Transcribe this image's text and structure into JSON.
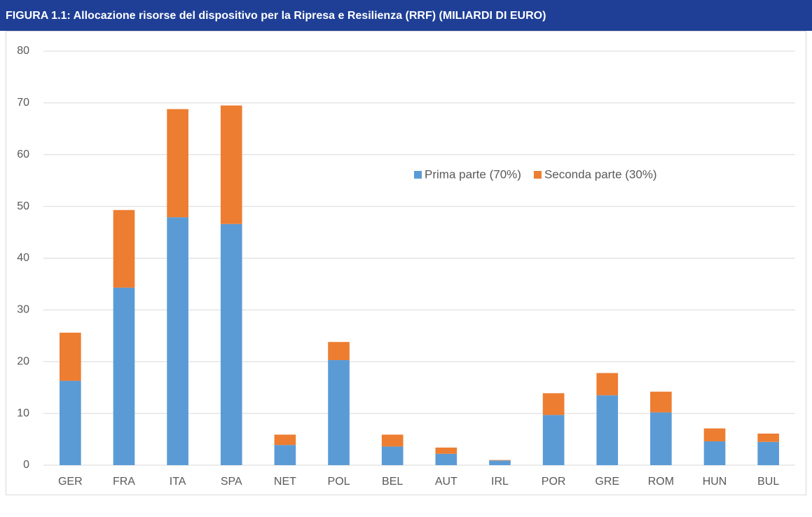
{
  "chart_data": {
    "type": "stacked_bar",
    "title": "FIGURA 1.1: Allocazione risorse del dispositivo per la Ripresa e Resilienza (RRF) (MILIARDI DI EURO)",
    "categories": [
      "GER",
      "FRA",
      "ITA",
      "SPA",
      "NET",
      "POL",
      "BEL",
      "AUT",
      "IRL",
      "POR",
      "GRE",
      "ROM",
      "HUN",
      "BUL"
    ],
    "series": [
      {
        "name": "Prima parte (70%)",
        "color": "#5b9bd5",
        "values": [
          16.3,
          34.3,
          47.9,
          46.6,
          3.9,
          20.3,
          3.6,
          2.2,
          0.9,
          9.7,
          13.5,
          10.2,
          4.6,
          4.5
        ]
      },
      {
        "name": "Seconda parte (30%)",
        "color": "#ed7d31",
        "values": [
          9.3,
          15.0,
          20.9,
          22.9,
          2.0,
          3.5,
          2.3,
          1.2,
          0.1,
          4.2,
          4.3,
          4.0,
          2.5,
          1.6
        ]
      }
    ],
    "ylim": [
      0,
      80
    ],
    "yticks": [
      0,
      10,
      20,
      30,
      40,
      50,
      60,
      70,
      80
    ],
    "grid": true,
    "legend": "upper right"
  }
}
